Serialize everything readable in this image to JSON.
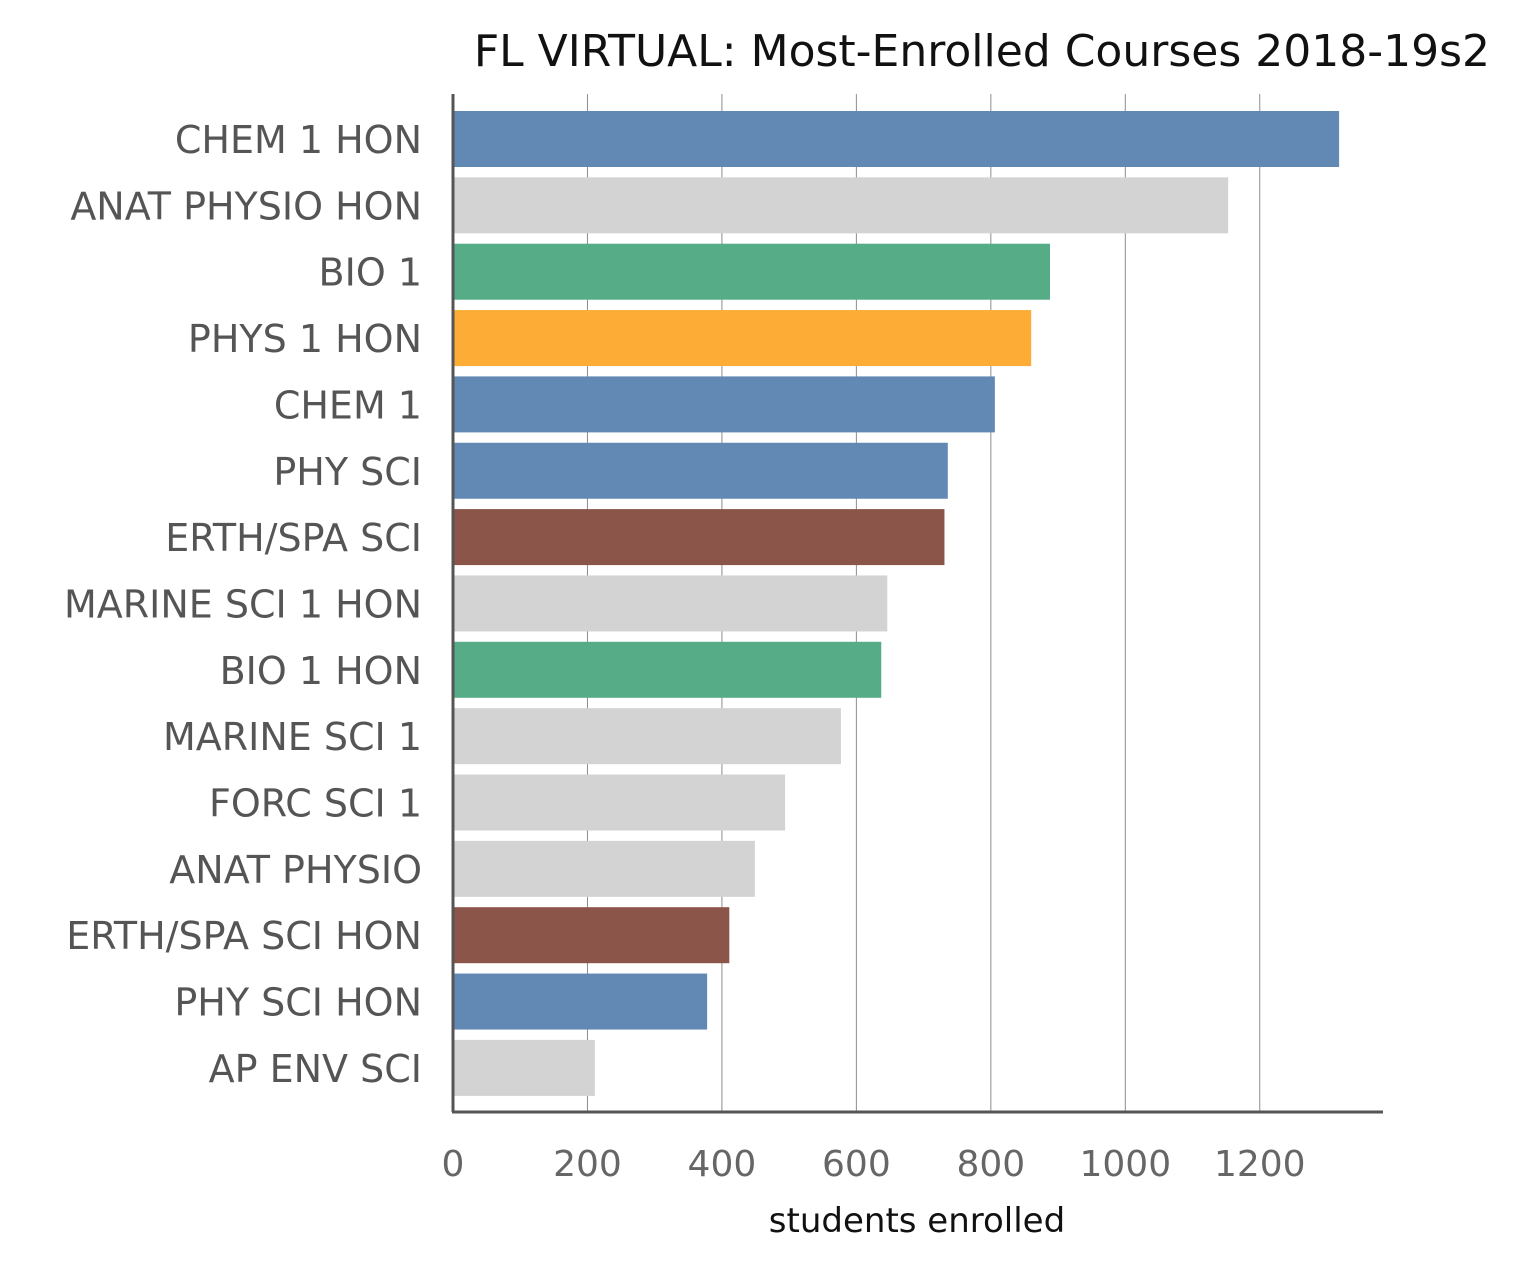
{
  "chart_data": {
    "type": "bar",
    "orientation": "horizontal",
    "title": "FL VIRTUAL: Most-Enrolled Courses 2018-19s2",
    "xlabel": "students enrolled",
    "ylabel": "",
    "xlim": [
      0,
      1380
    ],
    "xticks": [
      0,
      200,
      400,
      600,
      800,
      1000,
      1200
    ],
    "grid": "vertical",
    "legend": "none",
    "categories": [
      "CHEM 1 HON",
      "ANAT PHYSIO HON",
      "BIO 1",
      "PHYS 1 HON",
      "CHEM 1",
      "PHY SCI",
      "ERTH/SPA SCI",
      "MARINE SCI 1 HON",
      "BIO 1 HON",
      "MARINE SCI 1",
      "FORC SCI 1",
      "ANAT PHYSIO",
      "ERTH/SPA SCI HON",
      "PHY SCI HON",
      "AP ENV SCI"
    ],
    "values": [
      1318,
      1153,
      888,
      860,
      806,
      736,
      731,
      646,
      637,
      577,
      494,
      449,
      411,
      378,
      211
    ],
    "colors": [
      "#6289b4",
      "#d3d3d3",
      "#55ac86",
      "#fdad35",
      "#6289b4",
      "#6289b4",
      "#8b5549",
      "#d3d3d3",
      "#55ac86",
      "#d3d3d3",
      "#d3d3d3",
      "#d3d3d3",
      "#8b5549",
      "#6289b4",
      "#d3d3d3"
    ]
  }
}
